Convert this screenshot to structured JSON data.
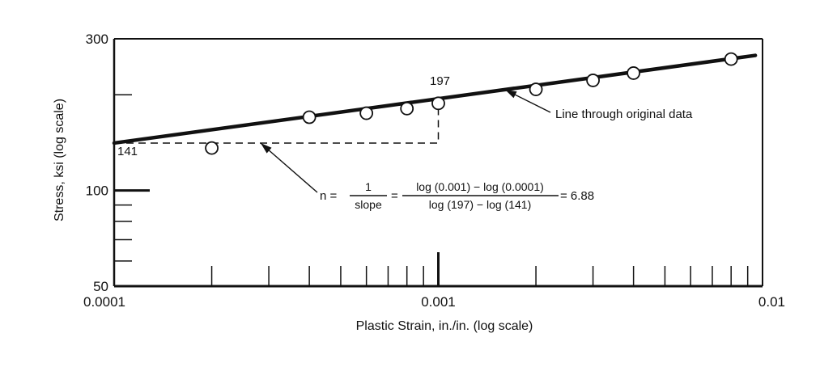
{
  "chart_data": {
    "type": "scatter",
    "title": "",
    "xlabel": "Plastic Strain, in./in. (log scale)",
    "ylabel": "Stress, ksi (log scale)",
    "x_scale": "log",
    "y_scale": "log",
    "xlim": [
      0.0001,
      0.01
    ],
    "ylim": [
      50,
      300
    ],
    "x_tick_labels": [
      {
        "value": 0.0001,
        "label": "0.0001"
      },
      {
        "value": 0.001,
        "label": "0.001"
      },
      {
        "value": 0.01,
        "label": "0.01"
      }
    ],
    "y_tick_labels": [
      {
        "value": 50,
        "label": "50"
      },
      {
        "value": 100,
        "label": "100"
      },
      {
        "value": 300,
        "label": "300"
      }
    ],
    "grid": false,
    "points": {
      "x": [
        0.0002,
        0.0004,
        0.0006,
        0.0008,
        0.001,
        0.002,
        0.003,
        0.004,
        0.008
      ],
      "y": [
        136,
        170,
        175,
        181,
        188,
        208,
        222,
        234,
        259
      ]
    },
    "fit_line": {
      "x": [
        0.0001,
        0.0095
      ],
      "y": [
        141,
        266
      ]
    },
    "slope_construction": {
      "x": [
        0.0001,
        0.001
      ],
      "y": [
        141,
        197
      ]
    },
    "annotations": {
      "label_141": "141",
      "label_197": "197",
      "fit_label": "Line through original data",
      "formula_n": "n =",
      "formula_frac1_num": "1",
      "formula_frac1_den": "slope",
      "formula_eq": "=",
      "formula_frac2_num": "log (0.001) − log (0.0001)",
      "formula_frac2_den": "log (197) − log (141)",
      "formula_result": "= 6.88"
    }
  }
}
